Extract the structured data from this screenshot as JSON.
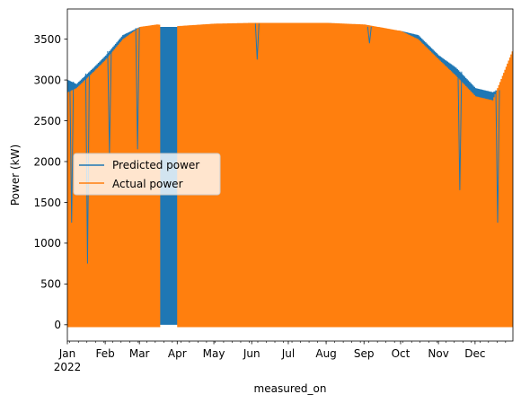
{
  "chart_data": {
    "type": "line",
    "title": "",
    "xlabel": "measured_on",
    "ylabel": "Power (kW)",
    "ylim": [
      -200,
      3870
    ],
    "xlim": [
      "2022-01-01",
      "2022-12-31"
    ],
    "yticks": [
      0,
      500,
      1000,
      1500,
      2000,
      2500,
      3000,
      3500
    ],
    "xticks": [
      {
        "date": "2022-01-01",
        "label": "Jan",
        "sublabel": "2022"
      },
      {
        "date": "2022-02-01",
        "label": "Feb",
        "sublabel": ""
      },
      {
        "date": "2022-03-01",
        "label": "Mar",
        "sublabel": ""
      },
      {
        "date": "2022-04-01",
        "label": "Apr",
        "sublabel": ""
      },
      {
        "date": "2022-05-01",
        "label": "May",
        "sublabel": ""
      },
      {
        "date": "2022-06-01",
        "label": "Jun",
        "sublabel": ""
      },
      {
        "date": "2022-07-01",
        "label": "Jul",
        "sublabel": ""
      },
      {
        "date": "2022-08-01",
        "label": "Aug",
        "sublabel": ""
      },
      {
        "date": "2022-09-01",
        "label": "Sep",
        "sublabel": ""
      },
      {
        "date": "2022-10-01",
        "label": "Oct",
        "sublabel": ""
      },
      {
        "date": "2022-11-01",
        "label": "Nov",
        "sublabel": ""
      },
      {
        "date": "2022-12-01",
        "label": "Dec",
        "sublabel": ""
      }
    ],
    "legend_position": "center-left",
    "grid": false,
    "series": [
      {
        "name": "Predicted power",
        "color": "#1f77b4",
        "daily_min": 0,
        "daily_max_envelope": [
          {
            "date": "2022-01-01",
            "value": 3000
          },
          {
            "date": "2022-01-08",
            "value": 2950
          },
          {
            "date": "2022-01-15",
            "value": 3050
          },
          {
            "date": "2022-01-22",
            "value": 3150
          },
          {
            "date": "2022-02-01",
            "value": 3300
          },
          {
            "date": "2022-02-15",
            "value": 3550
          },
          {
            "date": "2022-03-01",
            "value": 3650
          },
          {
            "date": "2022-03-15",
            "value": 3650
          },
          {
            "date": "2022-04-01",
            "value": 3650
          },
          {
            "date": "2022-05-01",
            "value": 3680
          },
          {
            "date": "2022-06-01",
            "value": 3690
          },
          {
            "date": "2022-07-01",
            "value": 3700
          },
          {
            "date": "2022-08-01",
            "value": 3700
          },
          {
            "date": "2022-09-01",
            "value": 3660
          },
          {
            "date": "2022-10-01",
            "value": 3600
          },
          {
            "date": "2022-10-15",
            "value": 3550
          },
          {
            "date": "2022-11-01",
            "value": 3300
          },
          {
            "date": "2022-11-15",
            "value": 3150
          },
          {
            "date": "2022-12-01",
            "value": 2900
          },
          {
            "date": "2022-12-15",
            "value": 2850
          },
          {
            "date": "2022-12-31",
            "value": 2950
          }
        ]
      },
      {
        "name": "Actual power",
        "color": "#ff7f0e",
        "daily_min": -30,
        "gap": [
          "2022-03-18",
          "2022-03-31"
        ],
        "daily_max_envelope": [
          {
            "date": "2022-01-01",
            "value": 2850
          },
          {
            "date": "2022-01-08",
            "value": 2900
          },
          {
            "date": "2022-01-15",
            "value": 3000
          },
          {
            "date": "2022-01-22",
            "value": 3100
          },
          {
            "date": "2022-02-01",
            "value": 3250
          },
          {
            "date": "2022-02-15",
            "value": 3500
          },
          {
            "date": "2022-03-01",
            "value": 3650
          },
          {
            "date": "2022-03-15",
            "value": 3680
          },
          {
            "date": "2022-04-01",
            "value": 3660
          },
          {
            "date": "2022-05-01",
            "value": 3690
          },
          {
            "date": "2022-06-01",
            "value": 3700
          },
          {
            "date": "2022-07-01",
            "value": 3700
          },
          {
            "date": "2022-08-01",
            "value": 3700
          },
          {
            "date": "2022-09-01",
            "value": 3680
          },
          {
            "date": "2022-10-01",
            "value": 3600
          },
          {
            "date": "2022-10-15",
            "value": 3500
          },
          {
            "date": "2022-11-01",
            "value": 3250
          },
          {
            "date": "2022-11-15",
            "value": 3050
          },
          {
            "date": "2022-12-01",
            "value": 2800
          },
          {
            "date": "2022-12-15",
            "value": 2750
          },
          {
            "date": "2022-12-31",
            "value": 3350
          }
        ]
      }
    ],
    "annotations": [
      {
        "series": "Predicted power",
        "date": "2022-01-04",
        "value": 1250
      },
      {
        "series": "Predicted power",
        "date": "2022-01-17",
        "value": 750
      },
      {
        "series": "Predicted power",
        "date": "2022-02-04",
        "value": 2100
      },
      {
        "series": "Predicted power",
        "date": "2022-02-27",
        "value": 2150
      },
      {
        "series": "Predicted power",
        "date": "2022-06-05",
        "value": 3250
      },
      {
        "series": "Predicted power",
        "date": "2022-09-05",
        "value": 3450
      },
      {
        "series": "Predicted power",
        "date": "2022-11-18",
        "value": 1650
      },
      {
        "series": "Predicted power",
        "date": "2022-12-19",
        "value": 1250
      }
    ]
  }
}
